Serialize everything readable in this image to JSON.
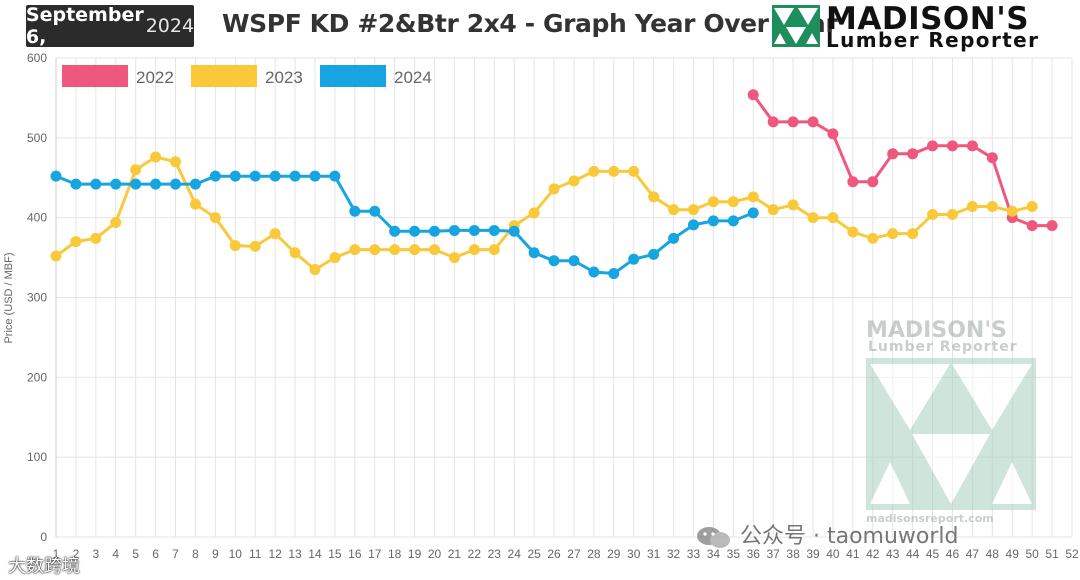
{
  "header": {
    "date_bold": "September 6,",
    "date_year": "2024",
    "title": "WSPF KD #2&Btr 2x4 - Graph Year Over Year",
    "logo_name": "MADISON'S",
    "logo_sub": "Lumber Reporter"
  },
  "watermark": {
    "name": "MADISON'S",
    "sub": "Lumber Reporter",
    "url": "madisonsreport.com",
    "wechat": "公众号 · taomuworld",
    "corner": "大数跨境"
  },
  "colors": {
    "2022": "#f0577e",
    "2023": "#f9c93a",
    "2024": "#16a5e0",
    "grid": "#e4e4e4",
    "badge": "#2b2b2b"
  },
  "chart_data": {
    "type": "line",
    "ylabel": "Price (USD / MBF)",
    "xlabel": "",
    "ylim": [
      0,
      600
    ],
    "y_ticks": [
      0,
      100,
      200,
      300,
      400,
      500,
      600
    ],
    "x_ticks": [
      1,
      2,
      3,
      4,
      5,
      6,
      7,
      8,
      9,
      10,
      11,
      12,
      13,
      14,
      15,
      16,
      17,
      18,
      19,
      20,
      21,
      22,
      23,
      24,
      25,
      26,
      27,
      28,
      29,
      30,
      31,
      32,
      33,
      34,
      35,
      36,
      37,
      38,
      39,
      40,
      41,
      42,
      43,
      44,
      45,
      46,
      47,
      48,
      49,
      50,
      51,
      52
    ],
    "legend_position": "top-left",
    "grid": true,
    "series": [
      {
        "name": "2022",
        "x": [
          36,
          37,
          38,
          39,
          40,
          41,
          42,
          43,
          44,
          45,
          46,
          47,
          48,
          49,
          50,
          51
        ],
        "values": [
          554,
          520,
          520,
          520,
          505,
          445,
          445,
          480,
          480,
          490,
          490,
          490,
          475,
          400,
          390,
          390
        ]
      },
      {
        "name": "2023",
        "x": [
          1,
          2,
          3,
          4,
          5,
          6,
          7,
          8,
          9,
          10,
          11,
          12,
          13,
          14,
          15,
          16,
          17,
          18,
          19,
          20,
          21,
          22,
          23,
          24,
          25,
          26,
          27,
          28,
          29,
          30,
          31,
          32,
          33,
          34,
          35,
          36,
          37,
          38,
          39,
          40,
          41,
          42,
          43,
          44,
          45,
          46,
          47,
          48,
          49,
          50
        ],
        "values": [
          352,
          370,
          374,
          394,
          460,
          476,
          470,
          417,
          400,
          365,
          364,
          380,
          356,
          335,
          350,
          360,
          360,
          360,
          360,
          360,
          350,
          360,
          360,
          390,
          406,
          436,
          446,
          458,
          458,
          458,
          426,
          410,
          410,
          420,
          420,
          426,
          410,
          416,
          400,
          400,
          382,
          374,
          380,
          380,
          404,
          404,
          414,
          414,
          408,
          414
        ]
      },
      {
        "name": "2024",
        "x": [
          1,
          2,
          3,
          4,
          5,
          6,
          7,
          8,
          9,
          10,
          11,
          12,
          13,
          14,
          15,
          16,
          17,
          18,
          19,
          20,
          21,
          22,
          23,
          24,
          25,
          26,
          27,
          28,
          29,
          30,
          31,
          32,
          33,
          34,
          35,
          36
        ],
        "values": [
          452,
          442,
          442,
          442,
          442,
          442,
          442,
          442,
          452,
          452,
          452,
          452,
          452,
          452,
          452,
          408,
          408,
          383,
          383,
          383,
          384,
          384,
          384,
          383,
          356,
          346,
          346,
          332,
          330,
          348,
          354,
          374,
          391,
          396,
          396,
          406
        ]
      }
    ]
  }
}
